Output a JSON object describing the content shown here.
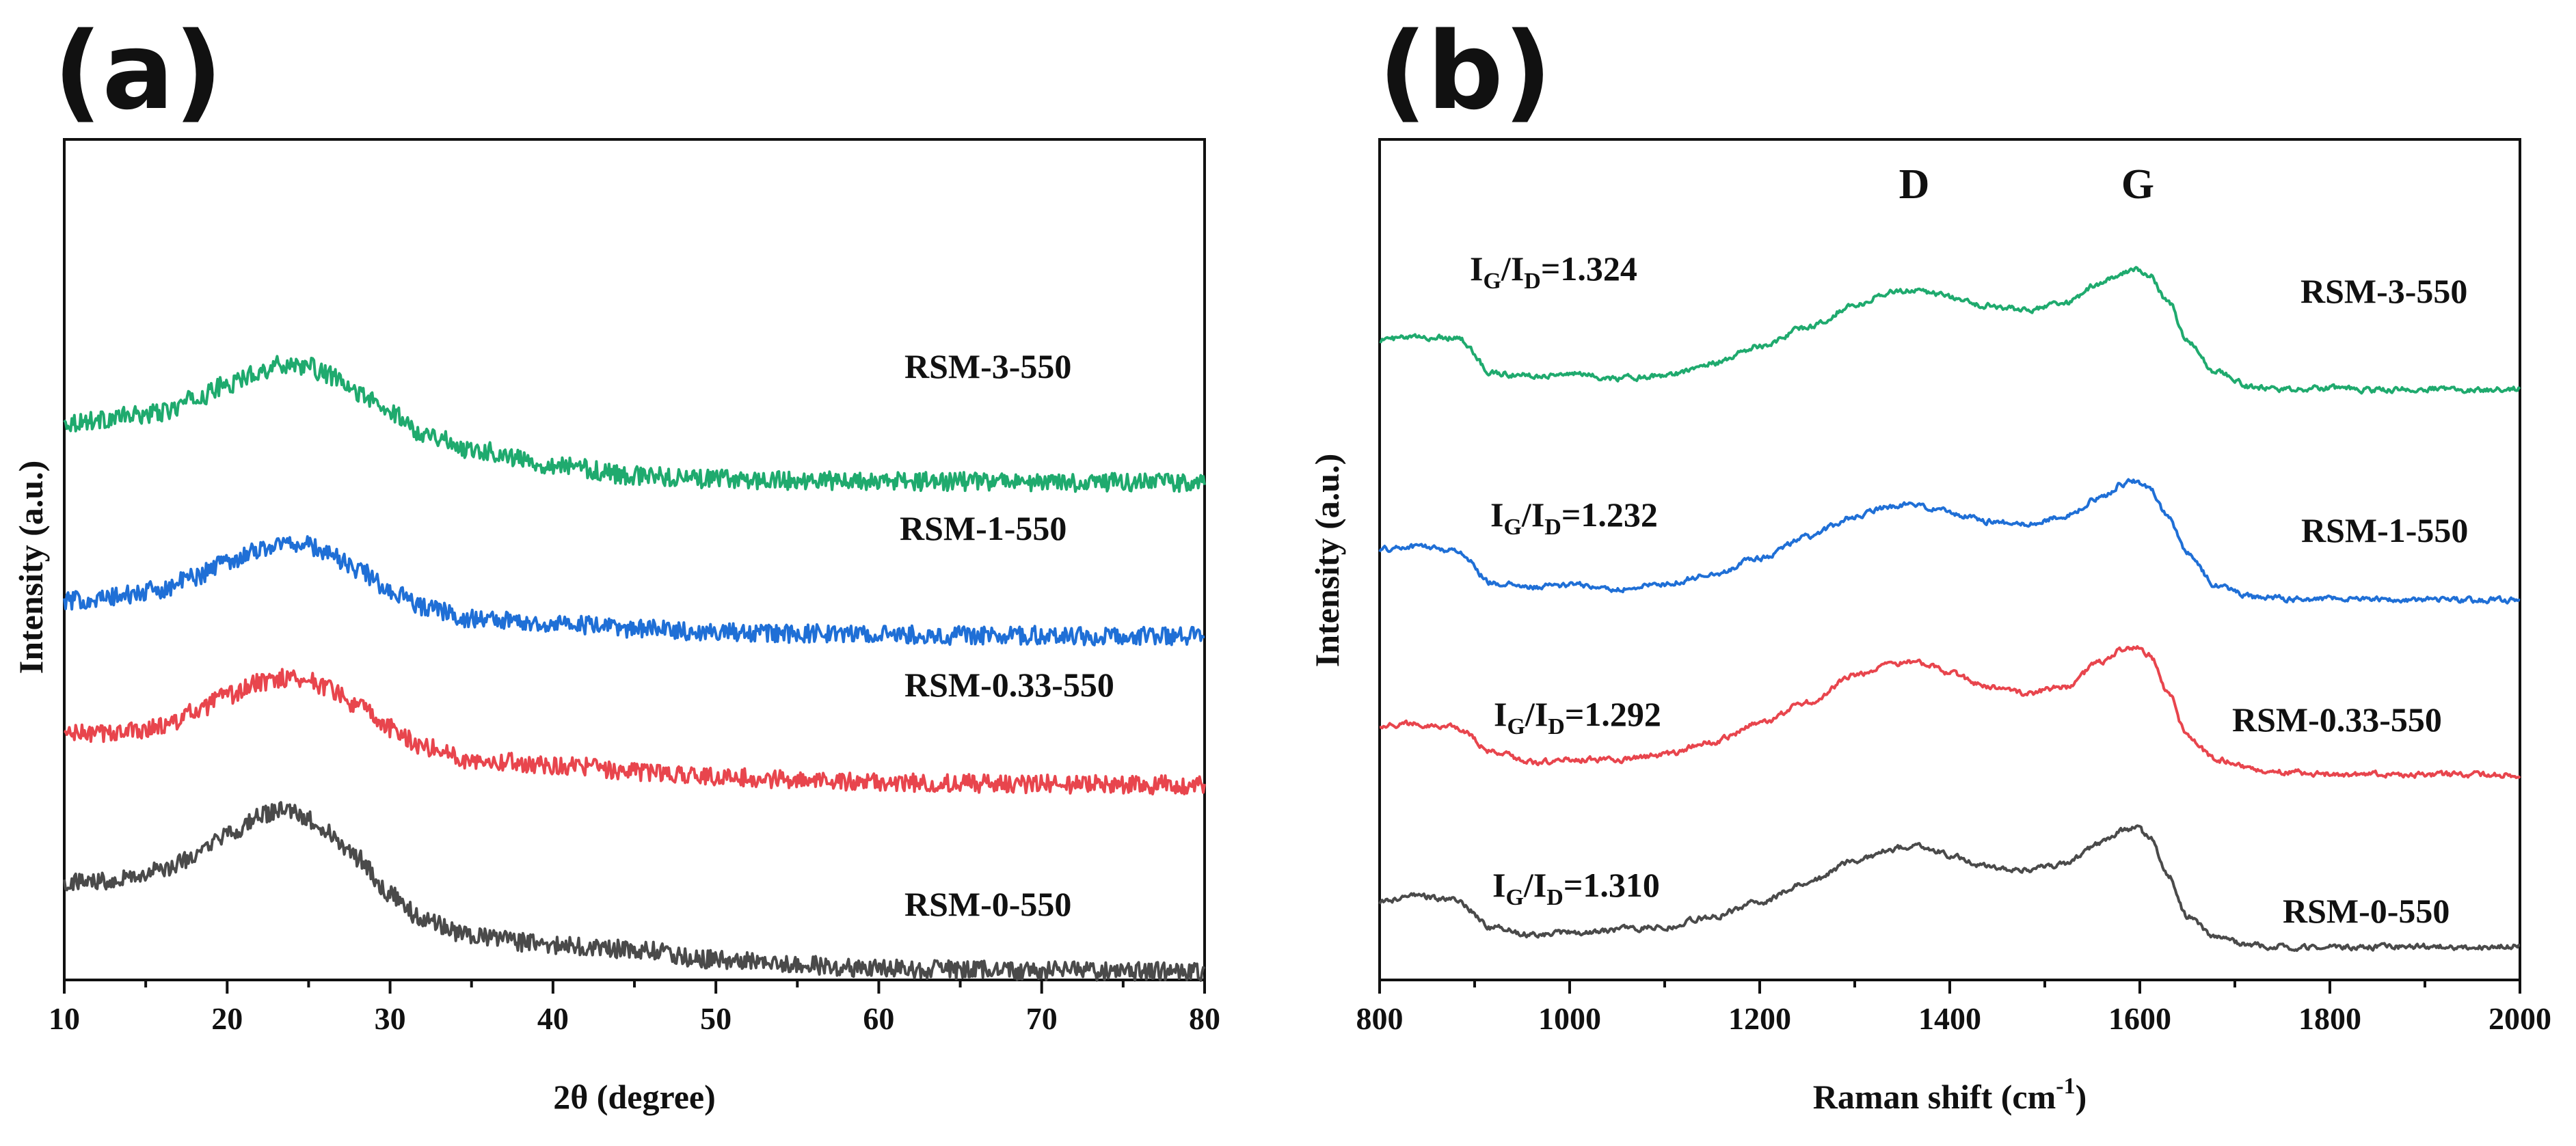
{
  "chart_data": [
    {
      "type": "line",
      "panel_label": "(a)",
      "title": "",
      "xlabel": "2θ (degree)",
      "ylabel": "Intensity (a.u.)",
      "xlim": [
        10,
        80
      ],
      "ylim": [
        0,
        1
      ],
      "xticks": [
        10,
        20,
        30,
        40,
        50,
        60,
        70,
        80
      ],
      "xtick_labels": [
        "10",
        "20",
        "30",
        "40",
        "50",
        "60",
        "70",
        "80"
      ],
      "legend": "inline labels at right end of each trace",
      "series": [
        {
          "name": "RSM-3-550",
          "label": "RSM-3-550",
          "color": "#1faa6e",
          "x": [
            10,
            12,
            14,
            16,
            18,
            20,
            22,
            23,
            24,
            25,
            26,
            28,
            30,
            32,
            35,
            40,
            45,
            50,
            55,
            60,
            65,
            70,
            75,
            80
          ],
          "y": [
            0.663,
            0.666,
            0.671,
            0.675,
            0.691,
            0.708,
            0.724,
            0.731,
            0.733,
            0.73,
            0.721,
            0.699,
            0.675,
            0.651,
            0.631,
            0.613,
            0.6,
            0.596,
            0.594,
            0.593,
            0.593,
            0.592,
            0.592,
            0.592
          ]
        },
        {
          "name": "RSM-1-550",
          "label": "RSM-1-550",
          "color": "#1f6fd6",
          "x": [
            10,
            12,
            14,
            16,
            18,
            20,
            22,
            23,
            24,
            25,
            26,
            28,
            30,
            32,
            35,
            40,
            45,
            50,
            55,
            60,
            65,
            70,
            75,
            80
          ],
          "y": [
            0.451,
            0.453,
            0.458,
            0.465,
            0.48,
            0.499,
            0.512,
            0.518,
            0.52,
            0.517,
            0.509,
            0.489,
            0.463,
            0.444,
            0.43,
            0.424,
            0.418,
            0.414,
            0.412,
            0.411,
            0.41,
            0.41,
            0.409,
            0.409
          ]
        },
        {
          "name": "RSM-0.33-550",
          "label": "RSM-0.33-550",
          "color": "#e8454d",
          "x": [
            10,
            12,
            14,
            16,
            18,
            20,
            22,
            23,
            24,
            25,
            26,
            28,
            30,
            32,
            35,
            40,
            45,
            50,
            55,
            60,
            65,
            70,
            75,
            80
          ],
          "y": [
            0.293,
            0.293,
            0.296,
            0.302,
            0.318,
            0.338,
            0.353,
            0.359,
            0.36,
            0.357,
            0.349,
            0.326,
            0.299,
            0.278,
            0.262,
            0.256,
            0.248,
            0.242,
            0.238,
            0.235,
            0.234,
            0.233,
            0.232,
            0.232
          ]
        },
        {
          "name": "RSM-0-550",
          "label": "RSM-0-550",
          "color": "#4a4a4a",
          "x": [
            10,
            12,
            14,
            16,
            18,
            20,
            22,
            23,
            24,
            25,
            26,
            28,
            30,
            32,
            35,
            40,
            45,
            50,
            55,
            60,
            65,
            70,
            75,
            80
          ],
          "y": [
            0.116,
            0.118,
            0.123,
            0.13,
            0.147,
            0.172,
            0.194,
            0.201,
            0.199,
            0.19,
            0.177,
            0.146,
            0.102,
            0.072,
            0.051,
            0.042,
            0.036,
            0.024,
            0.018,
            0.014,
            0.012,
            0.011,
            0.01,
            0.01
          ]
        }
      ]
    },
    {
      "type": "line",
      "panel_label": "(b)",
      "title": "",
      "xlabel": "Raman shift (cm",
      "xlabel_superscript": "-1",
      "xlabel_suffix": ")",
      "ylabel": "Intensity (a.u.)",
      "xlim": [
        800,
        2000
      ],
      "ylim": [
        0,
        1
      ],
      "xticks": [
        800,
        1000,
        1200,
        1400,
        1600,
        1800,
        2000
      ],
      "xtick_labels": [
        "800",
        "1000",
        "1200",
        "1400",
        "1600",
        "1800",
        "2000"
      ],
      "peak_annotations": [
        {
          "label": "D",
          "x": 1360
        },
        {
          "label": "G",
          "x": 1590
        }
      ],
      "legend": "inline labels at right end of each trace",
      "series": [
        {
          "name": "RSM-3-550",
          "label": "RSM-3-550",
          "ratio_label": {
            "main": "I",
            "sub1": "G",
            "slash": "/I",
            "sub2": "D",
            "value": "=1.324"
          },
          "color": "#1faa6e",
          "x": [
            800,
            840,
            880,
            920,
            960,
            1000,
            1050,
            1100,
            1150,
            1200,
            1250,
            1300,
            1340,
            1360,
            1380,
            1400,
            1440,
            1480,
            1520,
            1560,
            1580,
            1595,
            1610,
            1630,
            1650,
            1680,
            1720,
            1760,
            1800,
            1850,
            1900,
            1950,
            2000
          ],
          "y": [
            0.762,
            0.764,
            0.765,
            0.722,
            0.719,
            0.721,
            0.716,
            0.719,
            0.734,
            0.754,
            0.776,
            0.803,
            0.819,
            0.822,
            0.818,
            0.812,
            0.802,
            0.797,
            0.805,
            0.829,
            0.841,
            0.845,
            0.838,
            0.806,
            0.76,
            0.723,
            0.705,
            0.703,
            0.704,
            0.702,
            0.704,
            0.702,
            0.703
          ]
        },
        {
          "name": "RSM-1-550",
          "label": "RSM-1-550",
          "ratio_label": {
            "main": "I",
            "sub1": "G",
            "slash": "/I",
            "sub2": "D",
            "value": "=1.232"
          },
          "color": "#1f6fd6",
          "x": [
            800,
            840,
            880,
            920,
            960,
            1000,
            1050,
            1100,
            1150,
            1200,
            1250,
            1300,
            1340,
            1360,
            1380,
            1400,
            1440,
            1480,
            1520,
            1560,
            1580,
            1595,
            1610,
            1630,
            1650,
            1680,
            1720,
            1760,
            1800,
            1850,
            1900,
            1950,
            2000
          ],
          "y": [
            0.512,
            0.516,
            0.511,
            0.472,
            0.467,
            0.47,
            0.465,
            0.471,
            0.483,
            0.502,
            0.527,
            0.551,
            0.564,
            0.566,
            0.562,
            0.556,
            0.546,
            0.542,
            0.551,
            0.575,
            0.589,
            0.593,
            0.584,
            0.551,
            0.506,
            0.47,
            0.456,
            0.453,
            0.454,
            0.452,
            0.453,
            0.452,
            0.452
          ]
        },
        {
          "name": "RSM-0.33-550",
          "label": "RSM-0.33-550",
          "ratio_label": {
            "main": "I",
            "sub1": "G",
            "slash": "/I",
            "sub2": "D",
            "value": "=1.292"
          },
          "color": "#e8454d",
          "x": [
            800,
            840,
            880,
            920,
            960,
            1000,
            1050,
            1100,
            1150,
            1200,
            1250,
            1300,
            1340,
            1360,
            1380,
            1400,
            1440,
            1480,
            1520,
            1560,
            1580,
            1595,
            1610,
            1630,
            1650,
            1680,
            1720,
            1760,
            1800,
            1850,
            1900,
            1950,
            2000
          ],
          "y": [
            0.303,
            0.305,
            0.3,
            0.271,
            0.259,
            0.262,
            0.262,
            0.268,
            0.283,
            0.305,
            0.33,
            0.361,
            0.377,
            0.379,
            0.374,
            0.365,
            0.348,
            0.341,
            0.348,
            0.378,
            0.393,
            0.397,
            0.387,
            0.34,
            0.29,
            0.262,
            0.25,
            0.247,
            0.245,
            0.245,
            0.244,
            0.244,
            0.244
          ]
        },
        {
          "name": "RSM-0-550",
          "label": "RSM-0-550",
          "ratio_label": {
            "main": "I",
            "sub1": "G",
            "slash": "/I",
            "sub2": "D",
            "value": "=1.310"
          },
          "color": "#4a4a4a",
          "x": [
            800,
            840,
            880,
            920,
            960,
            1000,
            1050,
            1100,
            1150,
            1200,
            1250,
            1300,
            1340,
            1360,
            1380,
            1400,
            1440,
            1480,
            1520,
            1560,
            1580,
            1595,
            1610,
            1630,
            1650,
            1680,
            1720,
            1760,
            1800,
            1850,
            1900,
            1950,
            2000
          ],
          "y": [
            0.093,
            0.1,
            0.095,
            0.062,
            0.054,
            0.056,
            0.06,
            0.064,
            0.075,
            0.093,
            0.116,
            0.141,
            0.156,
            0.159,
            0.155,
            0.148,
            0.135,
            0.131,
            0.138,
            0.163,
            0.177,
            0.181,
            0.17,
            0.124,
            0.075,
            0.05,
            0.041,
            0.039,
            0.04,
            0.039,
            0.04,
            0.039,
            0.04
          ]
        }
      ]
    }
  ]
}
